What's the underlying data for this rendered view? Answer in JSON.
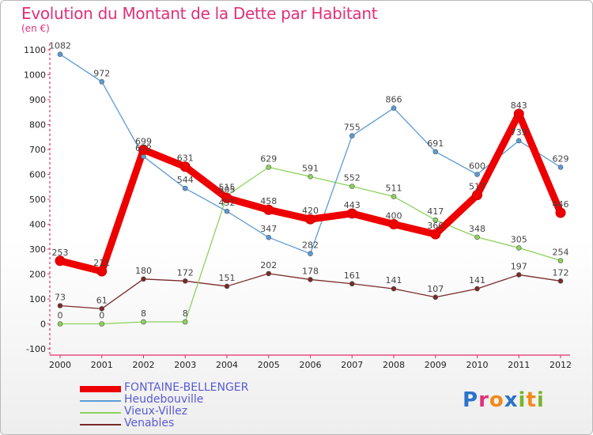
{
  "title": "Evolution du Montant de la Dette par Habitant",
  "unit": "(en €)",
  "logo_text": "Proxiti",
  "logo_colors": [
    "#2a74c9",
    "#e0307a",
    "#f08a1a",
    "#2a74c9",
    "#7ab52a",
    "#f08a1a",
    "#7ab52a"
  ],
  "chart_data": {
    "type": "line",
    "x": [
      "2000",
      "2001",
      "2002",
      "2003",
      "2004",
      "2005",
      "2006",
      "2007",
      "2008",
      "2009",
      "2010",
      "2011",
      "2012"
    ],
    "yticks": [
      "1100",
      "1000",
      "900",
      "800",
      "700",
      "600",
      "500",
      "400",
      "300",
      "200",
      "100",
      "0",
      "-100"
    ],
    "ylim": [
      -100,
      1100
    ],
    "grid": false,
    "legend_position": "bottom-left",
    "series": [
      {
        "name": "FONTAINE-BELLENGER",
        "color": "#ee0000",
        "values": [
          253,
          211,
          699,
          631,
          505,
          458,
          420,
          443,
          400,
          360,
          517,
          843,
          446
        ],
        "labels": [
          "253",
          "211",
          "699",
          "631",
          "505",
          "458",
          "420",
          "443",
          "400",
          "360",
          "517",
          "843",
          "446"
        ]
      },
      {
        "name": "Heudebouville",
        "color": "#5b9bd5",
        "values": [
          1082,
          972,
          672,
          544,
          452,
          347,
          282,
          755,
          866,
          691,
          600,
          735,
          629
        ],
        "labels": [
          "1082",
          "972",
          "672",
          "544",
          "452",
          "347",
          "282",
          "755",
          "866",
          "691",
          "600",
          "735",
          "629"
        ]
      },
      {
        "name": "Vieux-Villez",
        "color": "#8cd35a",
        "values": [
          0,
          0,
          8,
          8,
          515,
          629,
          591,
          552,
          511,
          417,
          348,
          305,
          254
        ],
        "labels": [
          "0",
          "0",
          "8",
          "8",
          "515",
          "629",
          "591",
          "552",
          "511",
          "417",
          "348",
          "305",
          "254"
        ]
      },
      {
        "name": "Venables",
        "color": "#7a2a2a",
        "values": [
          73,
          61,
          180,
          172,
          151,
          202,
          178,
          161,
          141,
          107,
          141,
          197,
          172
        ],
        "labels": [
          "73",
          "61",
          "180",
          "172",
          "151",
          "202",
          "178",
          "161",
          "141",
          "107",
          "141",
          "197",
          "172"
        ]
      }
    ]
  }
}
